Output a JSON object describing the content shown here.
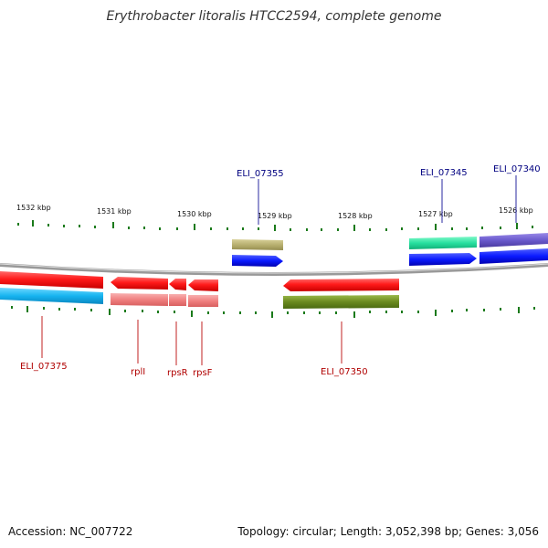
{
  "title": "Erythrobacter litoralis HTCC2594, complete genome",
  "accession": "Accession: NC_007722",
  "summary": "Topology: circular; Length: 3,052,398 bp; Genes: 3,056",
  "scale_labels": [
    "1532 kbp",
    "1531 kbp",
    "1530 kbp",
    "1529 kbp",
    "1528 kbp",
    "1527 kbp",
    "1526 kbp"
  ],
  "gene_labels": {
    "eli07355": "ELI_07355",
    "eli07345": "ELI_07345",
    "eli07340": "ELI_07340",
    "eli07375": "ELI_07375",
    "rpli": "rplI",
    "rpsr": "rpsR",
    "rpsf": "rpsF",
    "eli07350": "ELI_07350"
  },
  "colors": {
    "red_gene": "#ff1a1a",
    "pink_gene": "#f08080",
    "blue_gene": "#0a1aff",
    "cyan_gene": "#16b4f0",
    "olive_gene": "#6b8a1f",
    "khaki_gene": "#b8b070",
    "teal_gene": "#28e0a0",
    "purple_gene": "#6a5acd",
    "tick": "#1a7a1a",
    "backbone": "#888888"
  }
}
